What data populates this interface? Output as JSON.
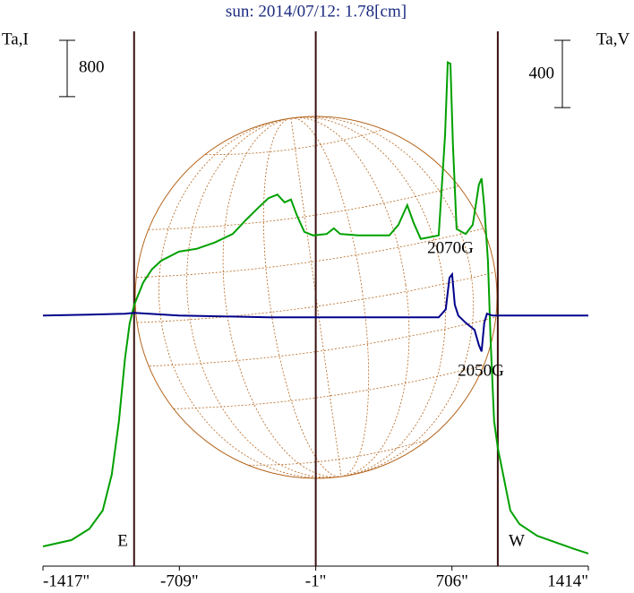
{
  "chart_data": {
    "type": "line",
    "title": "sun: 2014/07/12: 1.78[cm]",
    "y_label": "Ta,I",
    "y2_label": "Ta,V",
    "annotations": [
      "E",
      "W",
      "2070G",
      "2050G"
    ],
    "xlim": [
      -1417,
      1414
    ],
    "xticks": [
      {
        "value": -1417,
        "label": "-1417\""
      },
      {
        "value": -709,
        "label": "-709\""
      },
      {
        "value": -1,
        "label": "-1\""
      },
      {
        "value": 706,
        "label": "706\""
      },
      {
        "value": 1414,
        "label": "1414\""
      }
    ],
    "ylim": [
      0,
      7600
    ],
    "y2lim": [
      -1490,
      1690
    ],
    "vlines": [
      -944,
      -1,
      944
    ],
    "scale_bars": [
      {
        "value": 800
      },
      {
        "value": 400,
        "axis": "y2"
      }
    ],
    "series": [
      {
        "color": "#00a000",
        "x": [
          -1417,
          -1269,
          -1176,
          -1107,
          -1060,
          -1023,
          -991,
          -967,
          -944,
          -897,
          -851,
          -804,
          -711,
          -618,
          -525,
          -432,
          -363,
          -293,
          -246,
          -200,
          -163,
          -130,
          -98,
          -60,
          -14,
          56,
          93,
          126,
          219,
          312,
          381,
          428,
          474,
          507,
          544,
          637,
          670,
          684,
          698,
          711,
          730,
          777,
          814,
          846,
          860,
          874,
          893,
          907,
          925,
          944,
          972,
          1009,
          1056,
          1149,
          1242,
          1335,
          1414
        ],
        "values": [
          280,
          370,
          530,
          790,
          1300,
          2060,
          2950,
          3450,
          3710,
          4030,
          4220,
          4340,
          4470,
          4510,
          4600,
          4720,
          4920,
          5110,
          5230,
          5280,
          5170,
          5210,
          4980,
          4750,
          4700,
          4720,
          4800,
          4720,
          4700,
          4700,
          4700,
          4850,
          5130,
          4880,
          4650,
          4700,
          6120,
          7160,
          7140,
          5990,
          4790,
          4720,
          4850,
          5420,
          5510,
          5110,
          4340,
          3200,
          2060,
          1680,
          1300,
          790,
          600,
          430,
          340,
          250,
          180
        ]
      },
      {
        "color": "#00008b",
        "axis": "y2",
        "x": [
          -1417,
          -1176,
          -991,
          -944,
          -711,
          -479,
          -246,
          0,
          219,
          451,
          637,
          674,
          693,
          707,
          721,
          739,
          777,
          823,
          846,
          860,
          874,
          888,
          916,
          1149,
          1414
        ],
        "values": [
          0,
          5,
          11,
          16,
          0,
          -5,
          -11,
          -11,
          -11,
          -11,
          -11,
          37,
          224,
          245,
          64,
          0,
          -43,
          -85,
          -176,
          -213,
          -43,
          11,
          0,
          0,
          0
        ]
      }
    ]
  }
}
